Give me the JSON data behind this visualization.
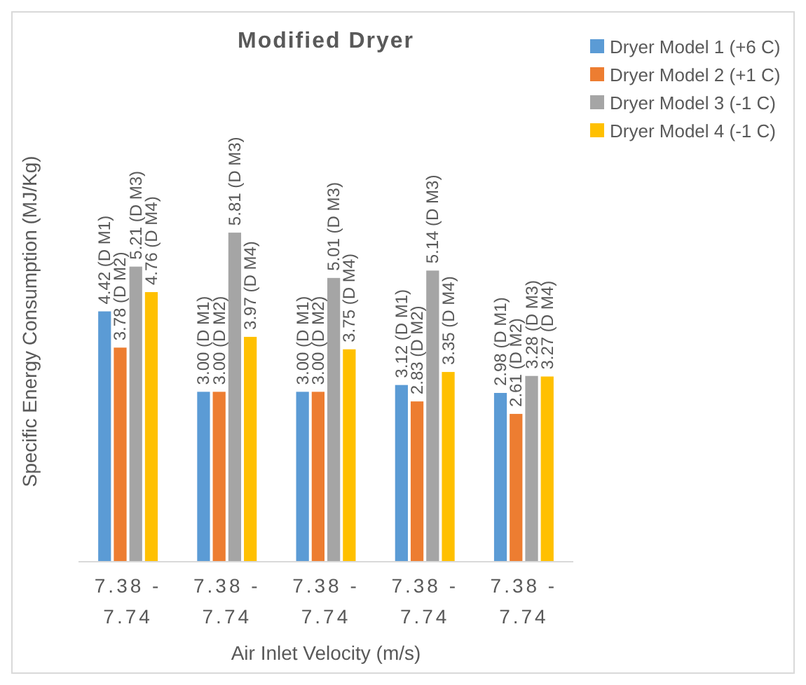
{
  "chart_data": {
    "type": "bar",
    "title": "Modified Dryer",
    "xlabel": "Air Inlet Velocity (m/s)",
    "ylabel": "Specific Energy Consumption (MJ/Kg)",
    "categories": [
      "7.38 - 7.74",
      "7.38 - 7.74",
      "7.38 - 7.74",
      "7.38 - 7.74",
      "7.38 - 7.74"
    ],
    "tick_labels": "x",
    "legend": "right",
    "series": [
      {
        "name": "Dryer Model 1 (+6 C)",
        "color": "#5b9bd5",
        "values": [
          4.42,
          3.0,
          3.0,
          3.12,
          2.98
        ],
        "value_labels": [
          "4.42 (D M1)",
          "3.00 (D M1)",
          "3.00 (D M1)",
          "3.12 (D M1)",
          "2.98 (D M1)"
        ]
      },
      {
        "name": "Dryer Model 2 (+1 C)",
        "color": "#ed7d31",
        "values": [
          3.78,
          3.0,
          3.0,
          2.83,
          2.61
        ],
        "value_labels": [
          "3.78 (D M2)",
          "3.00 (D M2)",
          "3.00 (D M2)",
          "2.83 (D M2)",
          "2.61 (D M2)"
        ]
      },
      {
        "name": "Dryer Model 3 (-1 C)",
        "color": "#a5a5a5",
        "values": [
          5.21,
          5.81,
          5.01,
          5.14,
          3.28
        ],
        "value_labels": [
          "5.21 (D M3)",
          "5.81 (D M3)",
          "5.01 (D M3)",
          "5.14 (D M3)",
          "3.28 (D M3)"
        ]
      },
      {
        "name": "Dryer Model 4 (-1 C)",
        "color": "#ffc000",
        "values": [
          4.76,
          3.97,
          3.75,
          3.35,
          3.27
        ],
        "value_labels": [
          "4.76 (D M4)",
          "3.97 (D M4)",
          "3.75 (D M4)",
          "3.35 (D M4)",
          "3.27 (D M4)"
        ]
      }
    ]
  }
}
